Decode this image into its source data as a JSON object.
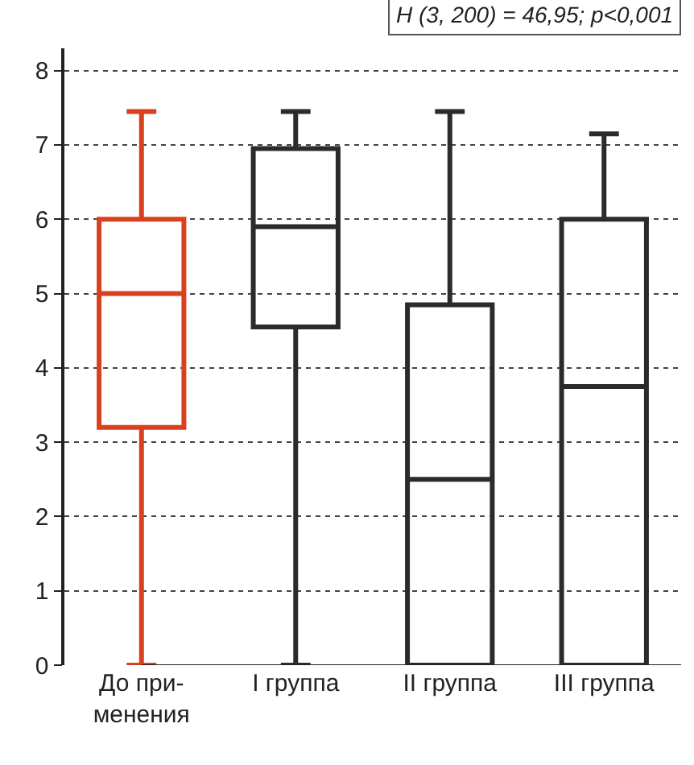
{
  "chart_data": {
    "type": "box",
    "categories": [
      "До при-\nменения",
      "I группа",
      "II группа",
      "III группа"
    ],
    "colors": [
      "#d9411e",
      "#2b2b2b",
      "#2b2b2b",
      "#2b2b2b"
    ],
    "boxes": [
      {
        "low": 0,
        "q1": 3.2,
        "median": 5,
        "q3": 6,
        "high": 7.45
      },
      {
        "low": 0,
        "q1": 4.55,
        "median": 5.9,
        "q3": 6.95,
        "high": 7.45
      },
      {
        "low": 0,
        "q1": 0,
        "median": 2.5,
        "q3": 4.85,
        "high": 7.45
      },
      {
        "low": 0,
        "q1": 0,
        "median": 3.75,
        "q3": 6,
        "high": 7.15
      }
    ],
    "ylim": [
      0,
      8.3
    ],
    "yticks": [
      0,
      1,
      2,
      3,
      4,
      5,
      6,
      7,
      8
    ],
    "grid": "y",
    "legend": false,
    "annotations": [
      "H (3, 200) = 46,95; p<0,001"
    ]
  }
}
